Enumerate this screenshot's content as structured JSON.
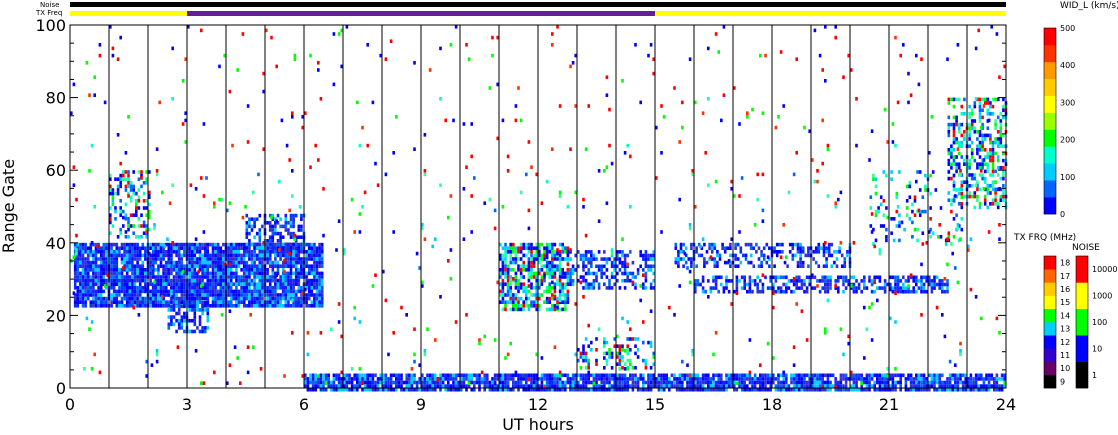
{
  "chart_data": {
    "type": "heatmap",
    "xlabel": "UT hours",
    "ylabel": "Range Gate",
    "xlim": [
      0,
      24
    ],
    "ylim": [
      0,
      100
    ],
    "xticks": [
      "0",
      "3",
      "6",
      "9",
      "12",
      "15",
      "18",
      "21",
      "24"
    ],
    "yticks": [
      "0",
      "20",
      "40",
      "60",
      "80",
      "100"
    ],
    "status_bars": {
      "noise_label": "Noise",
      "txfreq_label": "TX Freq",
      "txfreq_segments": [
        {
          "start": 0,
          "end": 3,
          "color": "#ffff00"
        },
        {
          "start": 3,
          "end": 15,
          "color": "#6a1b9a"
        },
        {
          "start": 15,
          "end": 24,
          "color": "#ffff00"
        }
      ],
      "noise_color": "#000000"
    },
    "scan_boundaries_ut": [
      1,
      2,
      3,
      4,
      5,
      6,
      7,
      8,
      9,
      10,
      11,
      12,
      13,
      14,
      15,
      16,
      17,
      18,
      19,
      20,
      21,
      22,
      23
    ],
    "dense_regions": [
      {
        "x0": 0.1,
        "x1": 6.5,
        "y0": 23,
        "y1": 40,
        "density": 0.9,
        "palette": "blue"
      },
      {
        "x0": 2.5,
        "x1": 3.5,
        "y0": 16,
        "y1": 24,
        "density": 0.6,
        "palette": "blue"
      },
      {
        "x0": 4.5,
        "x1": 6.0,
        "y0": 38,
        "y1": 48,
        "density": 0.5,
        "palette": "blue"
      },
      {
        "x0": 1.0,
        "x1": 2.0,
        "y0": 42,
        "y1": 60,
        "density": 0.35,
        "palette": "mix"
      },
      {
        "x0": 11.0,
        "x1": 12.8,
        "y0": 22,
        "y1": 40,
        "density": 0.7,
        "palette": "mix"
      },
      {
        "x0": 12.8,
        "x1": 15.0,
        "y0": 28,
        "y1": 38,
        "density": 0.45,
        "palette": "blue"
      },
      {
        "x0": 6.0,
        "x1": 24.0,
        "y0": 0,
        "y1": 4,
        "density": 0.85,
        "palette": "blue"
      },
      {
        "x0": 13.0,
        "x1": 15.0,
        "y0": 6,
        "y1": 14,
        "density": 0.3,
        "palette": "mix"
      },
      {
        "x0": 15.5,
        "x1": 20.0,
        "y0": 34,
        "y1": 40,
        "density": 0.45,
        "palette": "blue"
      },
      {
        "x0": 16.0,
        "x1": 22.5,
        "y0": 27,
        "y1": 31,
        "density": 0.55,
        "palette": "blue"
      },
      {
        "x0": 22.5,
        "x1": 24.0,
        "y0": 50,
        "y1": 80,
        "density": 0.45,
        "palette": "mix"
      },
      {
        "x0": 20.5,
        "x1": 23.0,
        "y0": 40,
        "y1": 60,
        "density": 0.15,
        "palette": "mix"
      },
      {
        "x0": 0.0,
        "x1": 24.0,
        "y0": 0,
        "y1": 100,
        "density": 0.012,
        "palette": "red"
      },
      {
        "x0": 0.0,
        "x1": 24.0,
        "y0": 0,
        "y1": 100,
        "density": 0.006,
        "palette": "mix"
      }
    ],
    "colorbars": [
      {
        "title": "WID_L (km/s)",
        "ticks": [
          "0",
          "100",
          "200",
          "300",
          "400",
          "500"
        ],
        "colors": [
          "#0000ff",
          "#0066ff",
          "#00ccff",
          "#00ffcc",
          "#00ff00",
          "#99ff00",
          "#ffff00",
          "#ffcc00",
          "#ff9900",
          "#ff3300",
          "#ff0000"
        ]
      },
      {
        "title": "TX FRQ (MHz)",
        "ticks": [
          "9",
          "10",
          "11",
          "12",
          "13",
          "14",
          "15",
          "16",
          "17",
          "18"
        ],
        "colors": [
          "#000000",
          "#660066",
          "#3300cc",
          "#0000ff",
          "#00ccff",
          "#00ff00",
          "#ffff00",
          "#ffcc00",
          "#ff6600",
          "#ff0000"
        ]
      },
      {
        "title": "NOISE",
        "ticks": [
          "1",
          "10",
          "100",
          "1000",
          "10000"
        ],
        "colors": [
          "#000000",
          "#0000ff",
          "#00ff00",
          "#ffff00",
          "#ff0000"
        ]
      }
    ]
  }
}
